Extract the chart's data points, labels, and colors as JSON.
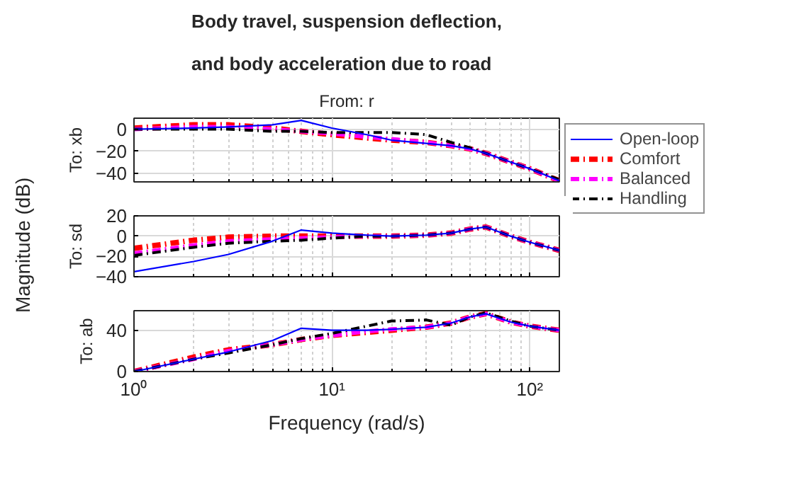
{
  "chart_data": [
    {
      "type": "line",
      "title": "Body travel, suspension deflection,\n\nand body acceleration due to road",
      "subtitle": "From: r",
      "ylabel": "To: xb",
      "log": "x",
      "grid": true,
      "legend": "right",
      "tick_labels": "y",
      "x": [
        1,
        2,
        3,
        5,
        7,
        10,
        15,
        20,
        30,
        40,
        50,
        60,
        80,
        100,
        141
      ],
      "xlim": [
        1,
        141
      ],
      "xticks": [
        {
          "value": 1,
          "label": null
        },
        {
          "value": 10,
          "label": null
        },
        {
          "value": 100,
          "label": null
        }
      ],
      "ylim": [
        -48,
        10
      ],
      "yticks": [
        -40,
        -20,
        0
      ],
      "series": [
        {
          "name": "Open-loop",
          "color": "#0000ff",
          "line_style": "solid",
          "values": [
            0,
            1,
            2,
            4,
            8,
            1,
            -5,
            -10,
            -13,
            -15,
            -18,
            -22,
            -30,
            -36,
            -47
          ]
        },
        {
          "name": "Comfort",
          "color": "#ff0000",
          "line_style": "dashdot",
          "values": [
            1,
            4,
            4,
            1,
            -2,
            -5,
            -8,
            -10,
            -12,
            -15,
            -18,
            -22,
            -30,
            -36,
            -47
          ]
        },
        {
          "name": "Balanced",
          "color": "#ff00ff",
          "line_style": "dashdot",
          "values": [
            0,
            2,
            2,
            0,
            -2,
            -4,
            -7,
            -9,
            -12,
            -15,
            -18,
            -22,
            -30,
            -36,
            -47
          ]
        },
        {
          "name": "Handling",
          "color": "#000000",
          "line_style": "dashdot",
          "values": [
            0,
            0,
            0,
            -2,
            -2,
            -3,
            -3,
            -3,
            -5,
            -12,
            -17,
            -22,
            -30,
            -36,
            -46
          ]
        }
      ]
    },
    {
      "type": "line",
      "ylabel": "To: sd",
      "annotations": [
        "Magnitude (dB)"
      ],
      "log": "x",
      "grid": true,
      "tick_labels": "y",
      "x": [
        1,
        2,
        3,
        5,
        7,
        10,
        15,
        20,
        30,
        40,
        50,
        60,
        80,
        100,
        141
      ],
      "xlim": [
        1,
        141
      ],
      "xticks": [
        {
          "value": 1,
          "label": null
        },
        {
          "value": 10,
          "label": null
        },
        {
          "value": 100,
          "label": null
        }
      ],
      "ylim": [
        -40,
        20
      ],
      "yticks": [
        -40,
        -20,
        0,
        20
      ],
      "series": [
        {
          "color": "#0000ff",
          "line_style": "solid",
          "values": [
            -35,
            -25,
            -18,
            -5,
            6,
            3,
            1,
            0,
            1,
            3,
            7,
            9,
            0,
            -6,
            -14
          ]
        },
        {
          "color": "#ff0000",
          "line_style": "dashdot",
          "values": [
            -12,
            -4,
            -1,
            0,
            0,
            0,
            0,
            0,
            1,
            3,
            7,
            9,
            0,
            -6,
            -14
          ]
        },
        {
          "color": "#ff00ff",
          "line_style": "dashdot",
          "values": [
            -17,
            -9,
            -5,
            -3,
            -2,
            -1,
            0,
            0,
            1,
            3,
            7,
            9,
            0,
            -6,
            -14
          ]
        },
        {
          "color": "#000000",
          "line_style": "dashdot",
          "values": [
            -19,
            -11,
            -7,
            -5,
            -4,
            -2,
            0,
            0,
            1,
            3,
            7,
            9,
            0,
            -6,
            -14
          ]
        }
      ]
    },
    {
      "type": "line",
      "ylabel": "To: ab",
      "xlabel": "Frequency (rad/s)",
      "log": "x",
      "grid": true,
      "x": [
        1,
        2,
        3,
        5,
        7,
        10,
        15,
        20,
        30,
        40,
        50,
        60,
        80,
        100,
        141
      ],
      "xlim": [
        1,
        141
      ],
      "xticks": [
        {
          "value": 1,
          "label": "10⁰"
        },
        {
          "value": 10,
          "label": "10¹"
        },
        {
          "value": 100,
          "label": "10²"
        }
      ],
      "ylim": [
        0,
        59
      ],
      "yticks": [
        0,
        40
      ],
      "series": [
        {
          "color": "#0000ff",
          "line_style": "solid",
          "values": [
            0,
            12,
            19,
            30,
            42,
            40,
            40,
            41,
            43,
            47,
            53,
            56,
            48,
            44,
            40
          ]
        },
        {
          "color": "#ff0000",
          "line_style": "dashdot",
          "values": [
            0,
            14,
            21,
            26,
            31,
            35,
            38,
            40,
            43,
            47,
            53,
            56,
            48,
            44,
            40
          ]
        },
        {
          "color": "#ff00ff",
          "line_style": "dashdot",
          "values": [
            0,
            12,
            20,
            26,
            31,
            35,
            39,
            41,
            43,
            47,
            53,
            56,
            48,
            44,
            40
          ]
        },
        {
          "color": "#000000",
          "line_style": "dashdot",
          "values": [
            0,
            12,
            18,
            26,
            32,
            37,
            44,
            49,
            50,
            45,
            53,
            57,
            49,
            44,
            40
          ]
        }
      ]
    }
  ]
}
